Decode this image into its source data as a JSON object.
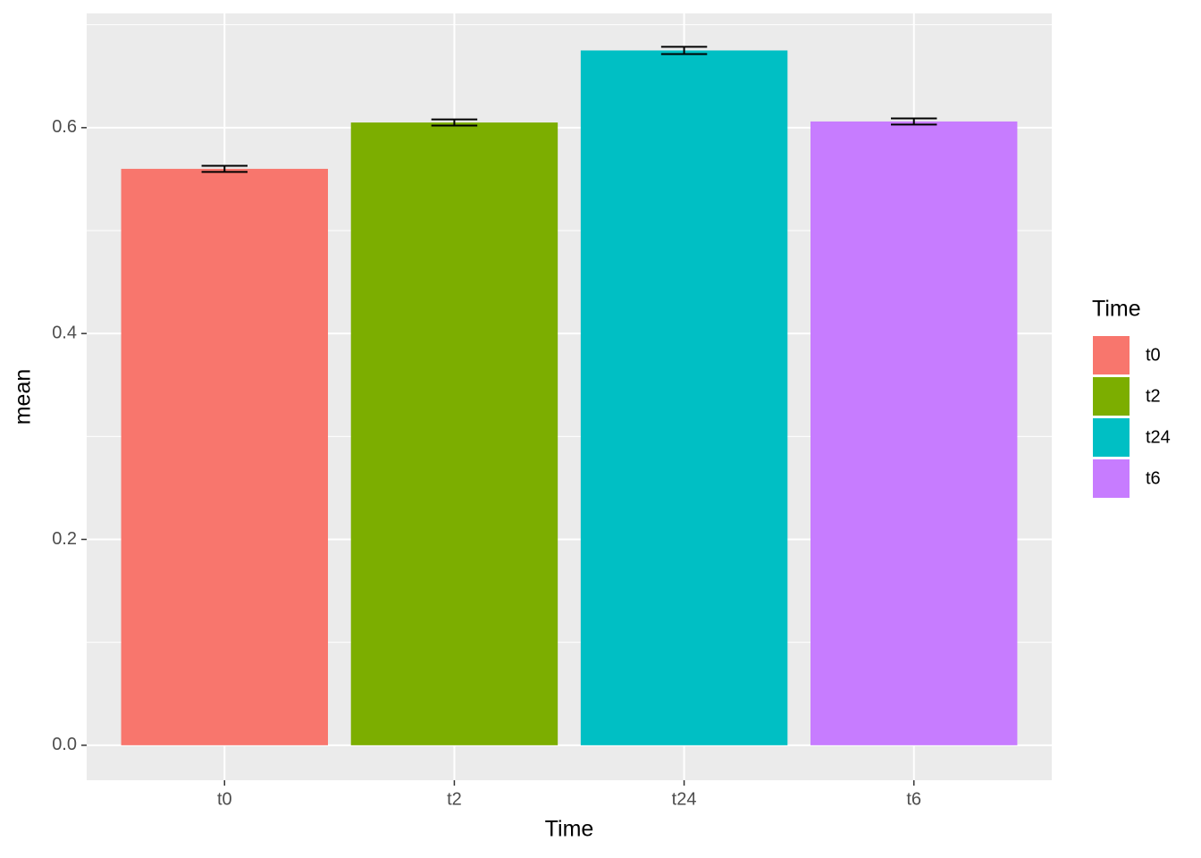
{
  "chart_data": {
    "type": "bar",
    "x_label": "Time",
    "y_label": "mean",
    "legend_title": "Time",
    "categories": [
      "t0",
      "t2",
      "t24",
      "t6"
    ],
    "values": [
      0.56,
      0.605,
      0.675,
      0.606
    ],
    "errors": [
      0.003,
      0.003,
      0.0035,
      0.003
    ],
    "colors": [
      "#f8766d",
      "#7cae00",
      "#00bfc4",
      "#c77cff"
    ],
    "ylim": [
      -0.034,
      0.711
    ],
    "yticks": [
      {
        "value": 0,
        "label": "0.0"
      },
      0.2,
      0.4,
      0.6
    ],
    "grid": true,
    "legend": "right"
  }
}
